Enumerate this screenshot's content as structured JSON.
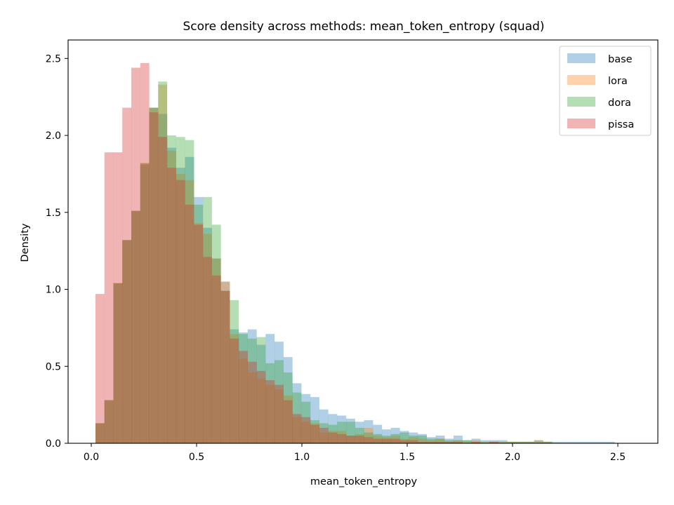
{
  "chart_data": {
    "type": "histogram",
    "title": "Score density across methods: mean_token_entropy (squad)",
    "xlabel": "mean_token_entropy",
    "ylabel": "Density",
    "xlim": [
      -0.11,
      2.69
    ],
    "ylim": [
      0,
      2.62
    ],
    "bin_start": 0.02,
    "bin_width": 0.0425,
    "x_ticks": [
      0.0,
      0.5,
      1.0,
      1.5,
      2.0,
      2.5
    ],
    "x_tick_labels": [
      "0.0",
      "0.5",
      "1.0",
      "1.5",
      "2.0",
      "2.5"
    ],
    "y_ticks": [
      0.0,
      0.5,
      1.0,
      1.5,
      2.0,
      2.5
    ],
    "y_tick_labels": [
      "0.0",
      "0.5",
      "1.0",
      "1.5",
      "2.0",
      "2.5"
    ],
    "grid": false,
    "legend_position": "upper-right",
    "series": [
      {
        "name": "base",
        "color": "#1f77b4",
        "values": [
          0.13,
          0.28,
          1.04,
          1.32,
          1.51,
          1.81,
          2.18,
          2.14,
          1.92,
          1.79,
          1.86,
          1.6,
          1.4,
          1.2,
          1.05,
          0.74,
          0.72,
          0.74,
          0.64,
          0.71,
          0.66,
          0.56,
          0.39,
          0.32,
          0.3,
          0.22,
          0.19,
          0.18,
          0.16,
          0.14,
          0.15,
          0.12,
          0.09,
          0.1,
          0.08,
          0.07,
          0.06,
          0.04,
          0.05,
          0.03,
          0.05,
          0.02,
          0.03,
          0.02,
          0.02,
          0.02,
          0.01,
          0.01,
          0.01,
          0.02,
          0.01,
          0.01,
          0.01,
          0.01,
          0.01,
          0.01,
          0.01,
          0.01,
          0.0,
          0.0,
          0.0,
          0.0,
          0.0,
          0.0,
          0.0,
          0.0,
          0.0,
          0.0,
          0.0,
          0.0,
          0.01
        ]
      },
      {
        "name": "lora",
        "color": "#ff7f0e",
        "values": [
          0.13,
          0.28,
          1.04,
          1.32,
          1.51,
          1.82,
          2.18,
          2.33,
          1.9,
          1.75,
          1.71,
          1.43,
          1.36,
          1.2,
          1.05,
          0.71,
          0.55,
          0.46,
          0.42,
          0.38,
          0.35,
          0.31,
          0.17,
          0.14,
          0.13,
          0.07,
          0.08,
          0.08,
          0.05,
          0.06,
          0.1,
          0.05,
          0.04,
          0.05,
          0.03,
          0.04,
          0.03,
          0.02,
          0.03,
          0.01,
          0.02,
          0.01,
          0.02,
          0.01,
          0.01,
          0.01,
          0.01,
          0.01,
          0.01,
          0.02,
          0.01,
          0.0,
          0.0,
          0.0,
          0.0,
          0.0,
          0.0,
          0.0,
          0.0,
          0.0,
          0.0,
          0.0,
          0.0,
          0.0,
          0.0,
          0.0,
          0.0,
          0.0,
          0.0,
          0.0,
          0.0
        ]
      },
      {
        "name": "dora",
        "color": "#2ca02c",
        "values": [
          0.13,
          0.28,
          1.04,
          1.32,
          1.51,
          1.82,
          2.18,
          2.35,
          2.0,
          1.99,
          1.97,
          1.55,
          1.6,
          1.42,
          0.99,
          0.93,
          0.71,
          0.68,
          0.69,
          0.52,
          0.54,
          0.46,
          0.33,
          0.27,
          0.15,
          0.13,
          0.12,
          0.14,
          0.14,
          0.1,
          0.07,
          0.06,
          0.05,
          0.06,
          0.07,
          0.05,
          0.05,
          0.03,
          0.03,
          0.02,
          0.02,
          0.02,
          0.01,
          0.01,
          0.01,
          0.01,
          0.01,
          0.01,
          0.01,
          0.01,
          0.01,
          0.0,
          0.0,
          0.0,
          0.0,
          0.0,
          0.0,
          0.0,
          0.0,
          0.0,
          0.0,
          0.0,
          0.0,
          0.0,
          0.0,
          0.0,
          0.0,
          0.0,
          0.0,
          0.0,
          0.0
        ]
      },
      {
        "name": "pissa",
        "color": "#d62728",
        "values": [
          0.97,
          1.89,
          1.89,
          2.18,
          2.44,
          2.47,
          2.15,
          1.99,
          1.79,
          1.71,
          1.55,
          1.42,
          1.21,
          1.09,
          0.99,
          0.68,
          0.6,
          0.53,
          0.47,
          0.41,
          0.38,
          0.28,
          0.19,
          0.17,
          0.12,
          0.1,
          0.07,
          0.06,
          0.05,
          0.05,
          0.04,
          0.03,
          0.03,
          0.03,
          0.02,
          0.02,
          0.01,
          0.01,
          0.01,
          0.01,
          0.01,
          0.0,
          0.01,
          0.0,
          0.01,
          0.0,
          0.0,
          0.0,
          0.0,
          0.0,
          0.0,
          0.0,
          0.0,
          0.0,
          0.0,
          0.0,
          0.0,
          0.0,
          0.0,
          0.0,
          0.0,
          0.0,
          0.0,
          0.0,
          0.0,
          0.0,
          0.0,
          0.0,
          0.0,
          0.0,
          0.0
        ]
      }
    ]
  }
}
